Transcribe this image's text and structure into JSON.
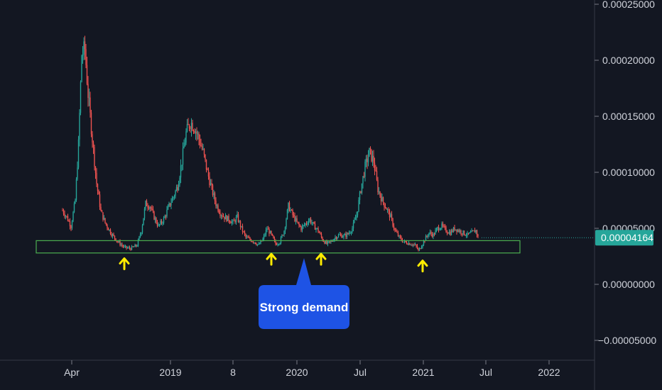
{
  "chart_data": {
    "type": "candlestick",
    "title": "",
    "ylim": [
      -6e-05,
      0.00025
    ],
    "y_ticks": [
      0.00025,
      0.0002,
      0.00015,
      0.0001,
      5e-05,
      0.0,
      -5e-05
    ],
    "y_tick_labels": [
      "0.00025000",
      "0.00020000",
      "0.00015000",
      "0.00010000",
      "0.00005000",
      "0.00000000",
      "−0.00005000"
    ],
    "x_ticks": [
      "Apr",
      "2019",
      "8",
      "2020",
      "Jul",
      "2021",
      "Jul",
      "2022"
    ],
    "last_price": 4.164e-05,
    "last_price_label": "0.00004164",
    "colors": {
      "up": "#26a69a",
      "down": "#ef5350",
      "background": "#131722",
      "zone": "#4caf50",
      "arrow": "#ffeb00",
      "callout": "#1e53e5",
      "price_tag": "#26a69a"
    },
    "series": [
      {
        "trend": [
          [
            0,
            6.6e-05
          ],
          [
            4,
            6e-05
          ],
          [
            8,
            5.2e-05
          ],
          [
            12,
            7.5e-05
          ],
          [
            15,
            0.000125
          ],
          [
            18,
            0.000205
          ],
          [
            21,
            0.00021
          ],
          [
            24,
            0.00017
          ],
          [
            28,
            0.00013
          ],
          [
            32,
            9e-05
          ],
          [
            36,
            6.5e-05
          ],
          [
            40,
            5.5e-05
          ],
          [
            46,
            4.5e-05
          ],
          [
            52,
            3.8e-05
          ],
          [
            58,
            3.3e-05
          ],
          [
            64,
            3.2e-05
          ],
          [
            70,
            3.5e-05
          ],
          [
            74,
            4.8e-05
          ],
          [
            78,
            7.2e-05
          ],
          [
            82,
            7e-05
          ],
          [
            86,
            6e-05
          ],
          [
            90,
            5.2e-05
          ],
          [
            95,
            5.8e-05
          ],
          [
            100,
            7e-05
          ],
          [
            104,
            7.8e-05
          ],
          [
            108,
            8.8e-05
          ],
          [
            112,
            0.00011
          ],
          [
            116,
            0.000135
          ],
          [
            120,
            0.000145
          ],
          [
            124,
            0.00014
          ],
          [
            128,
            0.00013
          ],
          [
            132,
            0.000118
          ],
          [
            136,
            0.0001
          ],
          [
            140,
            8.5e-05
          ],
          [
            144,
            7.2e-05
          ],
          [
            148,
            6.4e-05
          ],
          [
            152,
            6e-05
          ],
          [
            156,
            5.8e-05
          ],
          [
            160,
            5.5e-05
          ],
          [
            164,
            6e-05
          ],
          [
            168,
            5e-05
          ],
          [
            172,
            4.2e-05
          ],
          [
            176,
            4e-05
          ],
          [
            180,
            3.8e-05
          ],
          [
            184,
            3.5e-05
          ],
          [
            188,
            4e-05
          ],
          [
            192,
            5e-05
          ],
          [
            196,
            4.4e-05
          ],
          [
            200,
            3.6e-05
          ],
          [
            204,
            3.8e-05
          ],
          [
            208,
            4.8e-05
          ],
          [
            212,
            7e-05
          ],
          [
            216,
            6.2e-05
          ],
          [
            220,
            5.5e-05
          ],
          [
            224,
            5e-05
          ],
          [
            228,
            5.4e-05
          ],
          [
            232,
            5.8e-05
          ],
          [
            236,
            5.2e-05
          ],
          [
            240,
            4.8e-05
          ],
          [
            244,
            4e-05
          ],
          [
            248,
            3.6e-05
          ],
          [
            252,
            3.8e-05
          ],
          [
            256,
            4.2e-05
          ],
          [
            260,
            4.4e-05
          ],
          [
            264,
            4.3e-05
          ],
          [
            268,
            4.5e-05
          ],
          [
            272,
            5e-05
          ],
          [
            276,
            6.2e-05
          ],
          [
            280,
            8.5e-05
          ],
          [
            284,
            0.000105
          ],
          [
            288,
            0.000118
          ],
          [
            292,
            0.00011
          ],
          [
            296,
            8.5e-05
          ],
          [
            300,
            7.5e-05
          ],
          [
            304,
            6.8e-05
          ],
          [
            308,
            6e-05
          ],
          [
            312,
            4.8e-05
          ],
          [
            316,
            4.2e-05
          ],
          [
            320,
            3.8e-05
          ],
          [
            324,
            3.7e-05
          ],
          [
            328,
            3.6e-05
          ],
          [
            332,
            3.4e-05
          ],
          [
            334,
            3e-05
          ],
          [
            336,
            3.3e-05
          ],
          [
            340,
            4e-05
          ],
          [
            344,
            4.6e-05
          ],
          [
            348,
            4.4e-05
          ],
          [
            352,
            5e-05
          ],
          [
            356,
            5.2e-05
          ],
          [
            360,
            4.8e-05
          ],
          [
            364,
            4.6e-05
          ],
          [
            368,
            5e-05
          ],
          [
            372,
            4.8e-05
          ],
          [
            376,
            4.6e-05
          ],
          [
            380,
            4.4e-05
          ],
          [
            384,
            4.6e-05
          ],
          [
            388,
            4.8e-05
          ],
          [
            390,
            4.2e-05
          ]
        ]
      }
    ],
    "demand_zone": {
      "low": 2.8e-05,
      "high": 3.9e-05
    },
    "arrow_markers": [
      3.2e-05,
      3.6e-05,
      3.6e-05,
      3e-05
    ],
    "annotation": "Strong demand"
  }
}
